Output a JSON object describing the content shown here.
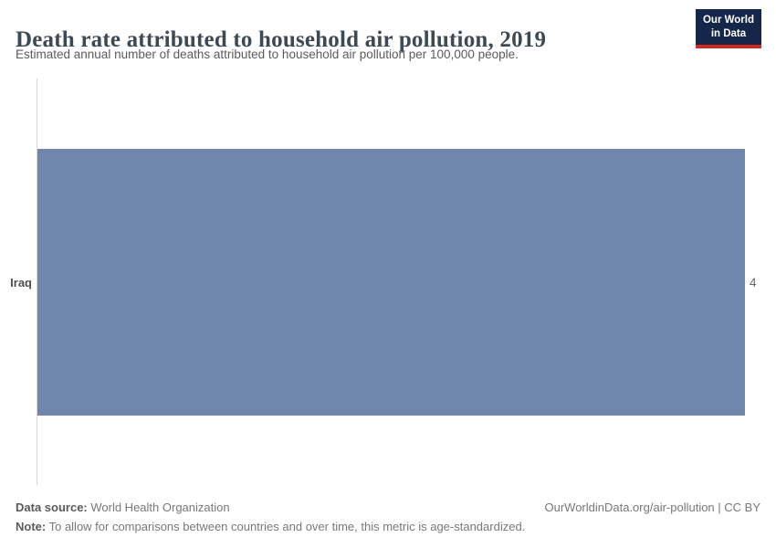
{
  "header": {
    "title": "Death rate attributed to household air pollution, 2019",
    "subtitle": "Estimated annual number of deaths attributed to household air pollution per 100,000 people.",
    "logo": {
      "line1": "Our World",
      "line2": "in Data"
    }
  },
  "chart_data": {
    "type": "bar",
    "orientation": "horizontal",
    "title": "Death rate attributed to household air pollution, 2019",
    "categories": [
      "Iraq"
    ],
    "values": [
      4
    ],
    "value_labels": [
      "4"
    ],
    "xlabel": "",
    "ylabel": "",
    "xlim": [
      0,
      4
    ],
    "grid": false,
    "legend": "none",
    "bar_color": "#7086ad"
  },
  "footer": {
    "datasource_label": "Data source:",
    "datasource_value": " World Health Organization",
    "note_label": "Note:",
    "note_value": " To allow for comparisons between countries and over time, this metric is age-standardized.",
    "attribution": "OurWorldinData.org/air-pollution | CC BY"
  },
  "colors": {
    "bar": "#7086ad",
    "logo_background": "#14274a",
    "logo_accent": "#d0281e",
    "title_text": "#3d4a56",
    "axis_line": "#d6d6d6"
  }
}
